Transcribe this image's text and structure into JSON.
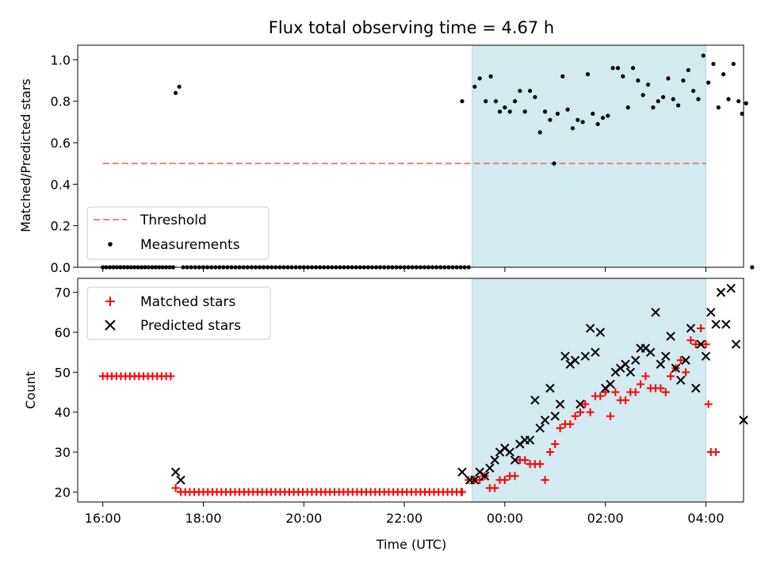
{
  "chart_data": [
    {
      "type": "scatter",
      "title": "Flux total observing time = 4.67 h",
      "xlabel": "",
      "ylabel": "Matched/Predicted stars",
      "x_unit": "hours since 16:00 UTC",
      "xlim": [
        -0.5,
        12.75
      ],
      "ylim": [
        0,
        1.07
      ],
      "yticks": [
        0.0,
        0.2,
        0.4,
        0.6,
        0.8,
        1.0
      ],
      "ytick_labels": [
        "0.0",
        "0.2",
        "0.4",
        "0.6",
        "0.8",
        "1.0"
      ],
      "shaded_span": [
        7.35,
        12.0
      ],
      "shade_color": "#d3eaf1",
      "legend": {
        "placement": "lower-left",
        "entries": [
          "Threshold",
          "Measurements"
        ]
      },
      "threshold": {
        "name": "Threshold",
        "y": 0.5,
        "x": [
          0.0,
          12.0
        ],
        "color": "#f08080",
        "style": "dashed"
      },
      "series": [
        {
          "name": "Measurements",
          "marker": "dot",
          "color": "#000000",
          "points": [
            [
              1.45,
              0.84
            ],
            [
              1.52,
              0.87
            ],
            [
              7.15,
              0.8
            ],
            [
              7.28,
              0.0
            ],
            [
              7.4,
              0.87
            ],
            [
              7.5,
              0.91
            ],
            [
              7.62,
              0.8
            ],
            [
              7.72,
              0.92
            ],
            [
              7.82,
              0.8
            ],
            [
              7.9,
              0.75
            ],
            [
              8.0,
              0.77
            ],
            [
              8.1,
              0.75
            ],
            [
              8.2,
              0.8
            ],
            [
              8.3,
              0.85
            ],
            [
              8.4,
              0.75
            ],
            [
              8.5,
              0.85
            ],
            [
              8.6,
              0.82
            ],
            [
              8.7,
              0.65
            ],
            [
              8.8,
              0.75
            ],
            [
              8.9,
              0.71
            ],
            [
              8.98,
              0.5
            ],
            [
              9.05,
              0.74
            ],
            [
              9.15,
              0.92
            ],
            [
              9.25,
              0.76
            ],
            [
              9.35,
              0.67
            ],
            [
              9.45,
              0.71
            ],
            [
              9.55,
              0.7
            ],
            [
              9.65,
              0.93
            ],
            [
              9.75,
              0.74
            ],
            [
              9.85,
              0.69
            ],
            [
              9.95,
              0.72
            ],
            [
              10.05,
              0.73
            ],
            [
              10.15,
              0.96
            ],
            [
              10.25,
              0.96
            ],
            [
              10.35,
              0.92
            ],
            [
              10.45,
              0.77
            ],
            [
              10.55,
              0.96
            ],
            [
              10.65,
              0.9
            ],
            [
              10.75,
              0.83
            ],
            [
              10.85,
              0.88
            ],
            [
              10.95,
              0.77
            ],
            [
              11.05,
              0.8
            ],
            [
              11.15,
              0.82
            ],
            [
              11.25,
              0.91
            ],
            [
              11.35,
              0.81
            ],
            [
              11.45,
              0.78
            ],
            [
              11.55,
              0.9
            ],
            [
              11.65,
              0.95
            ],
            [
              11.75,
              0.85
            ],
            [
              11.85,
              0.81
            ],
            [
              11.95,
              1.02
            ],
            [
              12.05,
              0.89
            ],
            [
              12.15,
              0.98
            ],
            [
              12.25,
              0.77
            ],
            [
              12.35,
              0.93
            ],
            [
              12.45,
              0.81
            ],
            [
              12.55,
              0.98
            ],
            [
              12.65,
              0.8
            ],
            [
              12.72,
              0.74
            ],
            [
              12.8,
              0.79
            ],
            [
              12.92,
              0.0
            ]
          ],
          "zero_run": {
            "y": 0.0,
            "ranges": [
              [
                0.0,
                1.45,
                0.07
              ],
              [
                1.6,
                7.2,
                0.08
              ]
            ]
          }
        }
      ]
    },
    {
      "type": "scatter",
      "title": "",
      "xlabel": "Time (UTC)",
      "ylabel": "Count",
      "x_unit": "hours since 16:00 UTC",
      "xlim": [
        -0.5,
        12.75
      ],
      "ylim": [
        17.5,
        73.5
      ],
      "yticks": [
        20,
        30,
        40,
        50,
        60,
        70
      ],
      "ytick_labels": [
        "20",
        "30",
        "40",
        "50",
        "60",
        "70"
      ],
      "xticks": [
        0,
        2,
        4,
        6,
        8,
        10,
        12
      ],
      "xtick_labels": [
        "16:00",
        "18:00",
        "20:00",
        "22:00",
        "00:00",
        "02:00",
        "04:00"
      ],
      "shaded_span": [
        7.35,
        12.0
      ],
      "shade_color": "#d3eaf1",
      "legend": {
        "placement": "top-left",
        "entries": [
          "Matched stars",
          "Predicted stars"
        ]
      },
      "series": [
        {
          "name": "Matched stars",
          "marker": "plus",
          "color": "#ff0000",
          "points": [
            [
              1.45,
              21
            ],
            [
              1.55,
              20
            ],
            [
              7.15,
              20
            ],
            [
              7.28,
              23
            ],
            [
              7.4,
              23
            ],
            [
              7.5,
              23
            ],
            [
              7.6,
              24
            ],
            [
              7.7,
              21
            ],
            [
              7.8,
              21
            ],
            [
              7.9,
              23
            ],
            [
              8.0,
              23
            ],
            [
              8.1,
              24
            ],
            [
              8.2,
              24
            ],
            [
              8.3,
              28
            ],
            [
              8.4,
              28
            ],
            [
              8.5,
              27
            ],
            [
              8.6,
              27
            ],
            [
              8.7,
              27
            ],
            [
              8.8,
              23
            ],
            [
              8.9,
              30
            ],
            [
              9.0,
              32
            ],
            [
              9.1,
              36
            ],
            [
              9.2,
              37
            ],
            [
              9.3,
              37
            ],
            [
              9.4,
              39
            ],
            [
              9.5,
              40
            ],
            [
              9.6,
              42
            ],
            [
              9.7,
              40
            ],
            [
              9.8,
              44
            ],
            [
              9.9,
              44
            ],
            [
              10.0,
              45
            ],
            [
              10.1,
              39
            ],
            [
              10.2,
              45
            ],
            [
              10.3,
              43
            ],
            [
              10.4,
              43
            ],
            [
              10.5,
              45
            ],
            [
              10.6,
              45
            ],
            [
              10.7,
              47
            ],
            [
              10.8,
              49
            ],
            [
              10.9,
              46
            ],
            [
              11.0,
              46
            ],
            [
              11.1,
              46
            ],
            [
              11.2,
              45
            ],
            [
              11.3,
              49
            ],
            [
              11.4,
              51
            ],
            [
              11.5,
              53
            ],
            [
              11.6,
              50
            ],
            [
              11.7,
              58
            ],
            [
              11.8,
              57
            ],
            [
              11.9,
              61
            ],
            [
              12.0,
              57
            ],
            [
              12.05,
              42
            ],
            [
              12.1,
              30
            ],
            [
              12.2,
              30
            ]
          ],
          "runs": [
            {
              "y": 49,
              "range": [
                0.0,
                1.4,
                0.09
              ]
            },
            {
              "y": 20,
              "range": [
                1.55,
                7.2,
                0.09
              ]
            }
          ]
        },
        {
          "name": "Predicted stars",
          "marker": "x",
          "color": "#000000",
          "points": [
            [
              1.45,
              25
            ],
            [
              1.55,
              23
            ],
            [
              7.15,
              25
            ],
            [
              7.3,
              23
            ],
            [
              7.4,
              23
            ],
            [
              7.5,
              25
            ],
            [
              7.6,
              24
            ],
            [
              7.7,
              26
            ],
            [
              7.8,
              28
            ],
            [
              7.9,
              30
            ],
            [
              8.0,
              31
            ],
            [
              8.1,
              30
            ],
            [
              8.2,
              28
            ],
            [
              8.3,
              32
            ],
            [
              8.4,
              33
            ],
            [
              8.5,
              33
            ],
            [
              8.6,
              43
            ],
            [
              8.7,
              36
            ],
            [
              8.8,
              38
            ],
            [
              8.9,
              46
            ],
            [
              9.0,
              39
            ],
            [
              9.1,
              42
            ],
            [
              9.2,
              54
            ],
            [
              9.3,
              52
            ],
            [
              9.4,
              53
            ],
            [
              9.5,
              42
            ],
            [
              9.6,
              54
            ],
            [
              9.7,
              61
            ],
            [
              9.8,
              55
            ],
            [
              9.9,
              60
            ],
            [
              10.0,
              46
            ],
            [
              10.1,
              47
            ],
            [
              10.2,
              50
            ],
            [
              10.3,
              51
            ],
            [
              10.4,
              52
            ],
            [
              10.5,
              50
            ],
            [
              10.6,
              53
            ],
            [
              10.7,
              56
            ],
            [
              10.8,
              56
            ],
            [
              10.9,
              55
            ],
            [
              11.0,
              65
            ],
            [
              11.1,
              52
            ],
            [
              11.2,
              54
            ],
            [
              11.3,
              59
            ],
            [
              11.4,
              51
            ],
            [
              11.5,
              48
            ],
            [
              11.6,
              53
            ],
            [
              11.7,
              61
            ],
            [
              11.8,
              46
            ],
            [
              11.9,
              57
            ],
            [
              12.0,
              54
            ],
            [
              12.1,
              65
            ],
            [
              12.2,
              62
            ],
            [
              12.3,
              70
            ],
            [
              12.4,
              62
            ],
            [
              12.5,
              71
            ],
            [
              12.6,
              57
            ],
            [
              12.75,
              38
            ]
          ]
        }
      ]
    }
  ]
}
